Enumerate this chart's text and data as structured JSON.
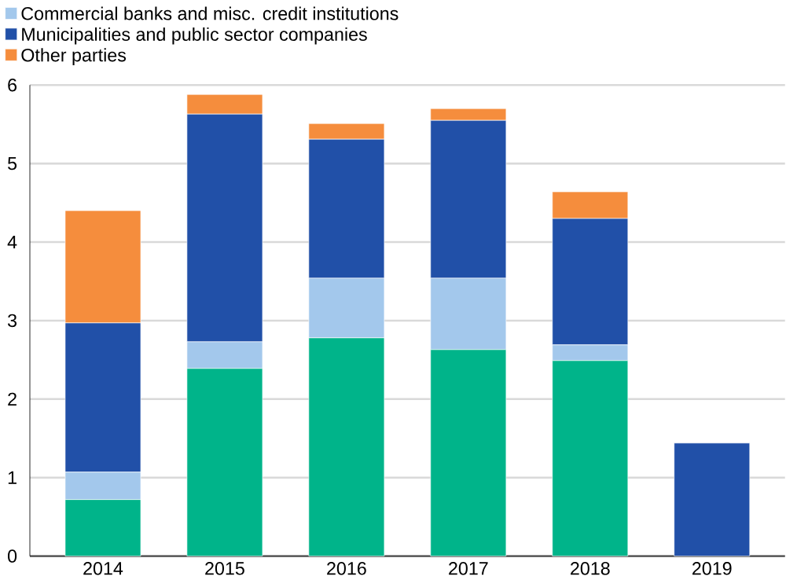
{
  "chart_data": {
    "type": "bar",
    "stacked": true,
    "categories": [
      "2014",
      "2015",
      "2016",
      "2017",
      "2018",
      "2019"
    ],
    "series": [
      {
        "color": "#00b48a",
        "values": [
          0.72,
          2.39,
          2.78,
          2.63,
          2.49,
          0
        ]
      },
      {
        "name": "Commercial banks and misc. credit institutions",
        "color": "#a3c8ec",
        "values": [
          0.35,
          0.34,
          0.76,
          0.91,
          0.2,
          0
        ]
      },
      {
        "name": "Municipalities and public sector companies",
        "color": "#2150a8",
        "values": [
          1.9,
          2.9,
          1.77,
          2.01,
          1.61,
          1.44
        ]
      },
      {
        "name": "Other parties",
        "color": "#f58d3d",
        "values": [
          1.43,
          0.25,
          0.2,
          0.15,
          0.34,
          0
        ]
      }
    ],
    "ylim": [
      0,
      6
    ],
    "yticks": [
      0,
      1,
      2,
      3,
      4,
      5,
      6
    ],
    "grid": "y",
    "legend": "top left"
  }
}
